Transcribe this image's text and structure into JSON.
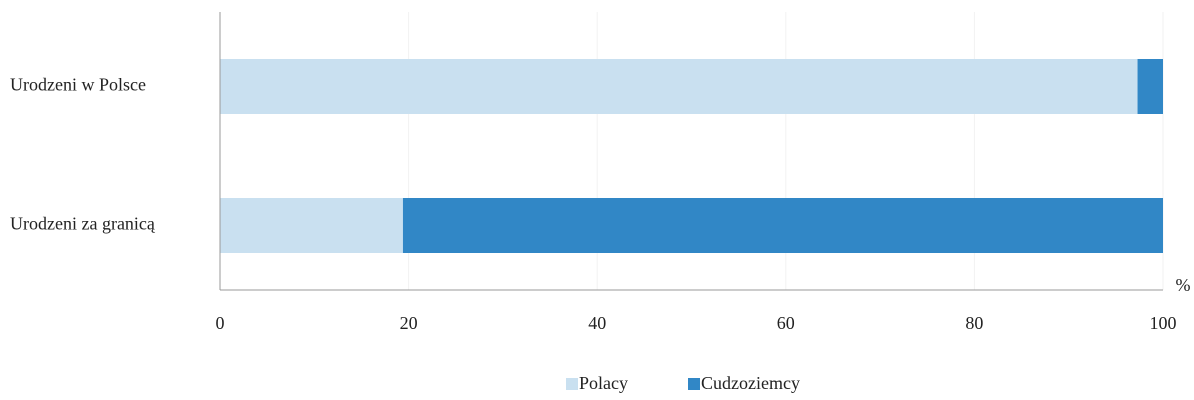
{
  "chart_data": {
    "type": "stacked-barh",
    "categories": [
      "Urodzeni w Polsce",
      "Urodzeni za granicą"
    ],
    "series": [
      {
        "name": "Polacy",
        "color": "#c9e0f0",
        "values": [
          97.3,
          19.4
        ]
      },
      {
        "name": "Cudzoziemcy",
        "color": "#3187c6",
        "values": [
          2.7,
          80.6
        ]
      }
    ],
    "xlabel": "%",
    "xlim": [
      0,
      100
    ],
    "xticks": [
      0,
      20,
      40,
      60,
      80,
      100
    ],
    "grid": true,
    "legend": "bottom"
  }
}
